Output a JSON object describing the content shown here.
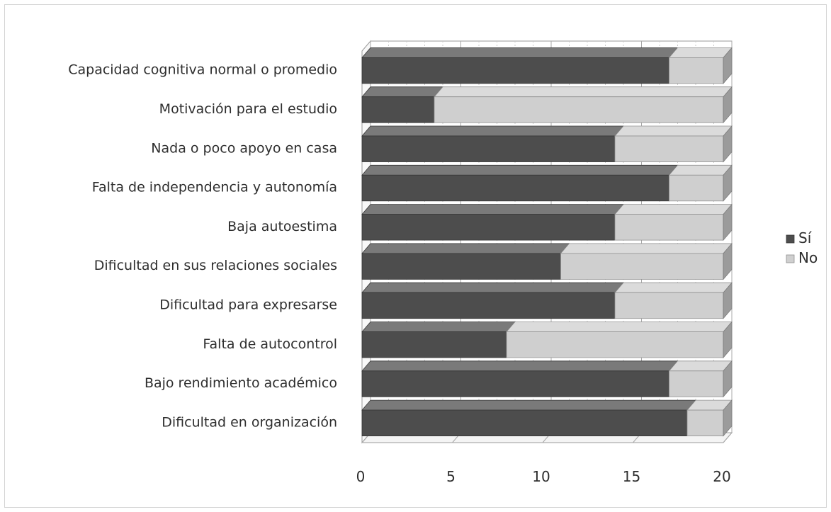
{
  "chart_data": {
    "type": "bar",
    "orientation": "horizontal",
    "stacked": true,
    "three_d": true,
    "categories": [
      "Capacidad cognitiva normal o promedio",
      "Motivación para el estudio",
      "Nada o poco apoyo en casa",
      "Falta de independencia y autonomía",
      "Baja autoestima",
      "Dificultad en sus relaciones sociales",
      "Dificultad para expresarse",
      "Falta de autocontrol",
      "Bajo rendimiento académico",
      "Dificultad en organización"
    ],
    "series": [
      {
        "name": "Sí",
        "color": "#4d4d4d",
        "values": [
          17,
          4,
          14,
          17,
          14,
          11,
          14,
          8,
          17,
          18
        ]
      },
      {
        "name": "No",
        "color": "#cfcfcf",
        "values": [
          3,
          16,
          6,
          3,
          6,
          9,
          6,
          12,
          3,
          2
        ]
      }
    ],
    "x_ticks": [
      "0",
      "5",
      "10",
      "15",
      "20"
    ],
    "xlim": [
      0,
      20
    ],
    "grid": true,
    "legend_position": "right",
    "title": "",
    "xlabel": "",
    "ylabel": ""
  }
}
